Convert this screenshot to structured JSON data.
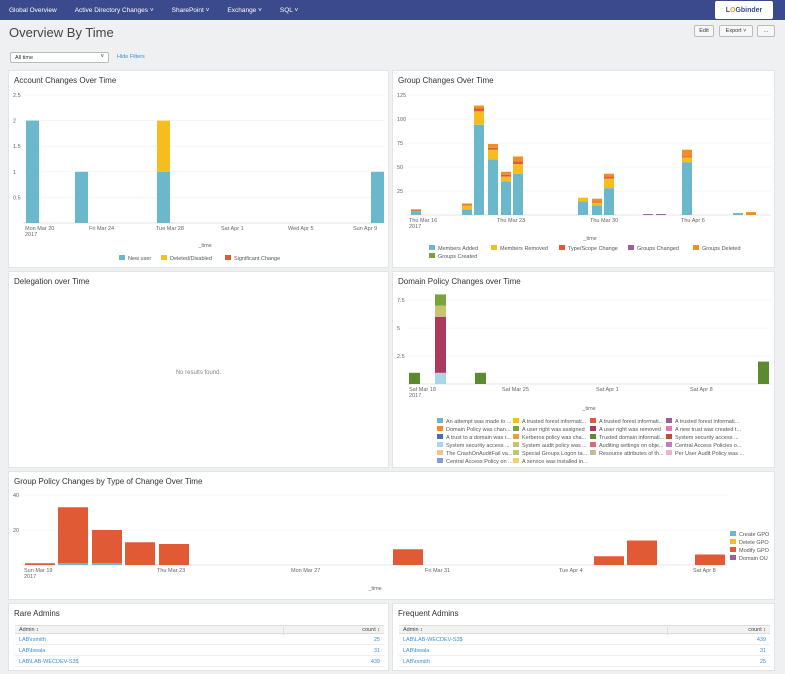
{
  "nav": {
    "items": [
      "Global Overview",
      "Active Directory Changes ˅",
      "SharePoint ˅",
      "Exchange ˅",
      "SQL ˅"
    ],
    "logo": {
      "pre": "L",
      "o": "O",
      "post": "Gbinder"
    }
  },
  "header": {
    "title": "Overview By Time",
    "edit": "Edit",
    "export": "Export ˅",
    "more": "..."
  },
  "filters": {
    "time_value": "All time",
    "hide_filters": "Hide Filters"
  },
  "panels": {
    "account": {
      "title": "Account Changes Over Time"
    },
    "group": {
      "title": "Group Changes Over Time"
    },
    "delegation": {
      "title": "Delegation over Time",
      "empty": "No results found."
    },
    "domain": {
      "title": "Domain Policy Changes over Time"
    },
    "gpo": {
      "title": "Group Policy Changes by Type of Change Over Time"
    }
  },
  "tables": {
    "rare": {
      "title": "Rare Admins",
      "col_admin": "Admin ↕",
      "col_count": "count ↕",
      "rows": [
        {
          "admin": "LAB\\rsmith",
          "count": "25"
        },
        {
          "admin": "LAB\\bwala",
          "count": "31"
        },
        {
          "admin": "LAB\\LAB-WECDEV-S3$",
          "count": "439"
        }
      ]
    },
    "frequent": {
      "title": "Frequent Admins",
      "col_admin": "Admin ↕",
      "col_count": "count ↕",
      "rows": [
        {
          "admin": "LAB\\LAB-WECDEV-S3$",
          "count": "439"
        },
        {
          "admin": "LAB\\bwala",
          "count": "31"
        },
        {
          "admin": "LAB\\rsmith",
          "count": "25"
        }
      ]
    }
  },
  "chart_data": [
    {
      "id": "account",
      "type": "bar",
      "title": "Account Changes Over Time",
      "xlabel": "_time",
      "ylim": [
        0,
        2.5
      ],
      "yticks": [
        "2.5",
        "2",
        "1.5",
        "1",
        "0.5"
      ],
      "xticks": [
        "Mon Mar 20\n2017",
        "Fri Mar 24",
        "Tue Mar 28",
        "Sat Apr 1",
        "Wed Apr 5",
        "Sun Apr 9"
      ],
      "series": [
        {
          "name": "New user",
          "color": "#6bb7cc"
        },
        {
          "name": "Deleted/Disabled",
          "color": "#f7bd1e"
        },
        {
          "name": "Significant Change",
          "color": "#e05a36"
        }
      ],
      "bars": [
        {
          "x": "Mon Mar 20",
          "values": [
            2,
            0,
            0
          ]
        },
        {
          "x": "Thu Mar 23",
          "values": [
            1,
            0,
            0
          ]
        },
        {
          "x": "Tue Mar 28",
          "values": [
            1,
            1,
            0
          ]
        },
        {
          "x": "Sun Apr 9",
          "values": [
            1,
            0,
            0
          ]
        }
      ]
    },
    {
      "id": "group",
      "type": "bar",
      "title": "Group Changes Over Time",
      "xlabel": "_time",
      "ylim": [
        0,
        125
      ],
      "yticks": [
        "125",
        "100",
        "75",
        "50",
        "25"
      ],
      "xticks": [
        "Thu Mar 16\n2017",
        "Thu Mar 23",
        "Thu Mar 30",
        "Thu Apr 6"
      ],
      "series": [
        {
          "name": "Members Added",
          "color": "#6bb7cc"
        },
        {
          "name": "Members Removed",
          "color": "#f7bd1e"
        },
        {
          "name": "Type/Scope Change",
          "color": "#e05a36"
        },
        {
          "name": "Groups Changed",
          "color": "#9d5d9e"
        },
        {
          "name": "Groups Deleted",
          "color": "#f28d2a"
        },
        {
          "name": "Groups Created",
          "color": "#79a33c"
        }
      ]
    },
    {
      "id": "domain",
      "type": "bar",
      "title": "Domain Policy Changes over Time",
      "xlabel": "_time",
      "ylim": [
        0,
        7.5
      ],
      "yticks": [
        "7.5",
        "5",
        "2.5"
      ],
      "xticks": [
        "Sat Mar 18\n2017",
        "Sat Mar 25",
        "Sat Apr 1",
        "Sat Apr 8"
      ],
      "legend": [
        "An attempt was made to ...",
        "A trusted forest informati...",
        "A trusted forest informati...",
        "A trusted forest informati...",
        "Domain Policy was chan...",
        "A user right was assigned",
        "A user right was removed",
        "A new trust was created t...",
        "A trust to a domain was r...",
        "Kerberos policy was cha...",
        "Trusted domain informati...",
        "System security access ...",
        "System security access ...",
        "System audit policy was ...",
        "Auditing settings on obje...",
        "Central Access Policies o...",
        "The CrashOnAuditFail va...",
        "Special Groups Logon ta...",
        "Resource attributes of th...",
        "Per User Audit Policy was ...",
        "Central Access Policy on ...",
        "A service was installed in..."
      ],
      "legend_colors": [
        "#6bb7cc",
        "#f7bd1e",
        "#e05a36",
        "#9d5d9e",
        "#f28d2a",
        "#79a33c",
        "#aa3a5e",
        "#e07ab8",
        "#4a6fb0",
        "#e8a13a",
        "#5d8a2f",
        "#c24a3a",
        "#a8d8e8",
        "#c9c272",
        "#d96b7a",
        "#b97fc0",
        "#f5c28a",
        "#b7c96a",
        "#c9b99a",
        "#e8b4d0",
        "#7aa0d4",
        "#f0d070"
      ]
    },
    {
      "id": "gpo",
      "type": "bar",
      "title": "Group Policy Changes by Type of Change Over Time",
      "xlabel": "_time",
      "ylim": [
        0,
        40
      ],
      "yticks": [
        "40",
        "20"
      ],
      "xticks": [
        "Sun Mar 19\n2017",
        "Thu Mar 23",
        "Mon Mar 27",
        "Fri Mar 31",
        "Tue Apr 4",
        "Sat Apr 8"
      ],
      "series": [
        {
          "name": "Create GPO",
          "color": "#6bb7cc"
        },
        {
          "name": "Delete GPO",
          "color": "#f7bd1e"
        },
        {
          "name": "Modify GPO",
          "color": "#e05a36"
        },
        {
          "name": "Domain OU",
          "color": "#9d5d9e"
        }
      ]
    }
  ]
}
